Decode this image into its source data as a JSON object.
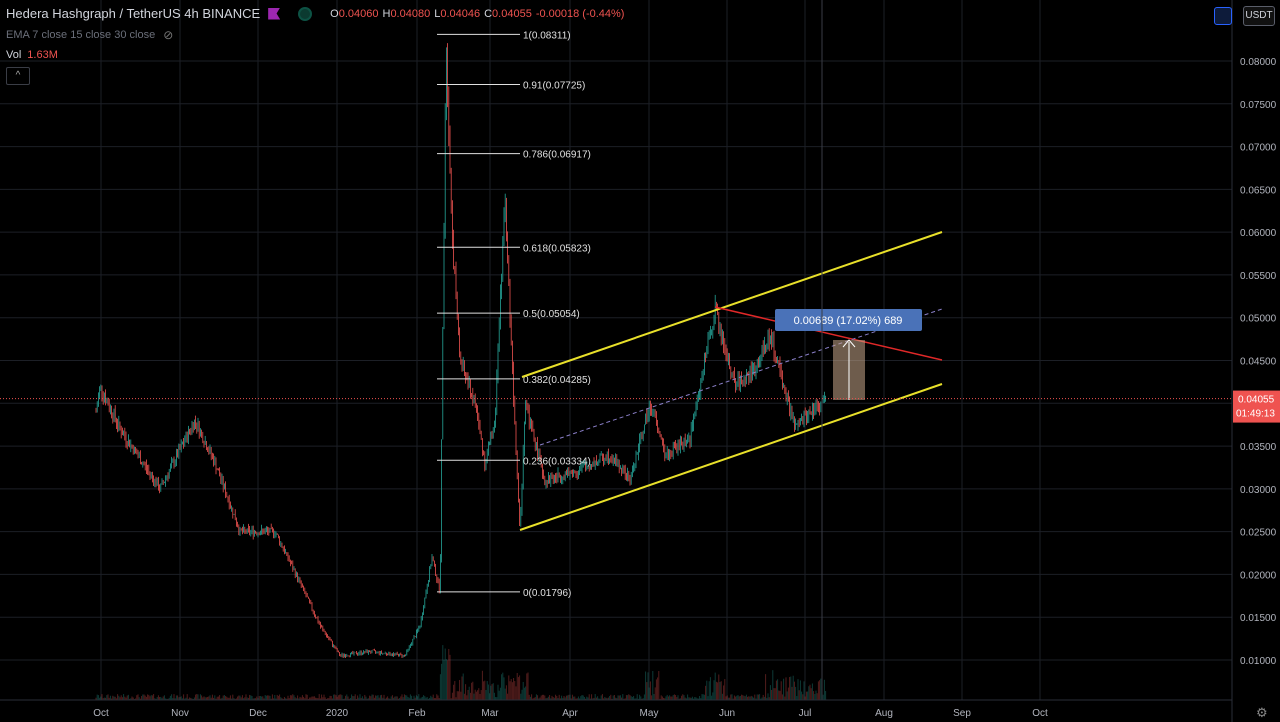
{
  "header": {
    "symbol": "Hedera Hashgraph / TetherUS",
    "interval": "4h",
    "exchange": "BINANCE",
    "ohlc": {
      "o_label": "O",
      "o": "0.04060",
      "h_label": "H",
      "h": "0.04080",
      "l_label": "L",
      "l": "0.04046",
      "c_label": "C",
      "c": "0.04055",
      "change": "-0.00018 (-0.44%)"
    }
  },
  "indicators": {
    "ema": "EMA 7 close 15 close 30 close"
  },
  "volume": {
    "label": "Vol",
    "value": "1.63M"
  },
  "currency_button": "USDT",
  "price_axis": {
    "ticks": [
      "0.08000",
      "0.07500",
      "0.07000",
      "0.06500",
      "0.06000",
      "0.05500",
      "0.05000",
      "0.04500",
      "0.04000",
      "0.03500",
      "0.03000",
      "0.02500",
      "0.02000",
      "0.01500",
      "0.01000"
    ],
    "current_price": "0.04055",
    "countdown": "01:49:13"
  },
  "time_axis": {
    "labels": [
      "Oct",
      "Nov",
      "Dec",
      "2020",
      "Feb",
      "Mar",
      "Apr",
      "May",
      "Jun",
      "Jul",
      "Aug",
      "Sep",
      "Oct"
    ]
  },
  "fibonacci": [
    {
      "label": "1(0.08311)"
    },
    {
      "label": "0.91(0.07725)"
    },
    {
      "label": "0.786(0.06917)"
    },
    {
      "label": "0.618(0.05823)"
    },
    {
      "label": "0.5(0.05054)"
    },
    {
      "label": "0.382(0.04285)"
    },
    {
      "label": "0.236(0.03334)"
    },
    {
      "label": "0(0.01796)"
    }
  ],
  "measure_label": "0.00689 (17.02%) 689",
  "colors": {
    "up": "#26a69a",
    "down": "#ef5350",
    "channel": "#e8e02a",
    "resistance": "#e02828",
    "measure_bg": "#4a72b8",
    "price_tag": "#ef5350"
  },
  "chart_data": {
    "type": "candlestick",
    "symbol": "Hedera Hashgraph / TetherUS",
    "interval": "4h",
    "y_range": [
      0.0058,
      0.0838
    ],
    "approx_close_path": [
      {
        "x": "Oct",
        "y": 0.039
      },
      {
        "x": "Nov",
        "y": 0.034
      },
      {
        "x": "Dec",
        "y": 0.024
      },
      {
        "x": "2020",
        "y": 0.0105
      },
      {
        "x": "Feb",
        "y": 0.015
      },
      {
        "x": "Feb",
        "y": 0.0831
      },
      {
        "x": "Mar",
        "y": 0.064
      },
      {
        "x": "Mar",
        "y": 0.025
      },
      {
        "x": "Apr",
        "y": 0.031
      },
      {
        "x": "May",
        "y": 0.04
      },
      {
        "x": "Jun",
        "y": 0.051
      },
      {
        "x": "Jul",
        "y": 0.037
      },
      {
        "x": "Jul",
        "y": 0.04055
      }
    ]
  }
}
